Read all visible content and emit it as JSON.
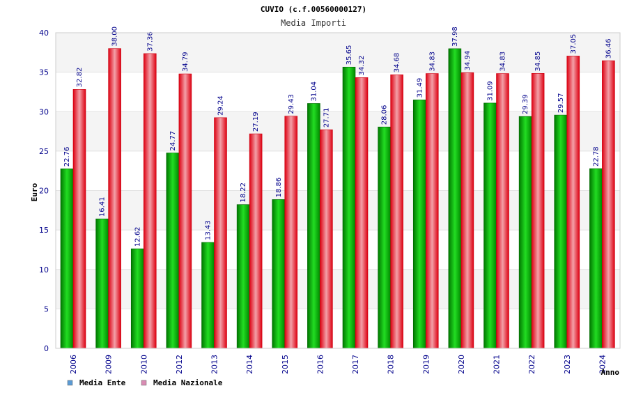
{
  "chart_data": {
    "type": "bar",
    "title": "CUVIO (c.f.00560000127)",
    "subtitle": "Media Importi",
    "xlabel": "Anno",
    "ylabel": "Euro",
    "ylim": [
      0,
      40
    ],
    "yticks": [
      0,
      5,
      10,
      15,
      20,
      25,
      30,
      35,
      40
    ],
    "grid": true,
    "legend_position": "bottom-left",
    "categories": [
      "2006",
      "2009",
      "2010",
      "2012",
      "2013",
      "2014",
      "2015",
      "2016",
      "2017",
      "2018",
      "2019",
      "2020",
      "2021",
      "2022",
      "2023",
      "2024"
    ],
    "series": [
      {
        "name": "Media Ente",
        "color": "#00aa00",
        "legend_color": "#5b9bd5",
        "values": [
          22.76,
          16.41,
          12.62,
          24.77,
          13.43,
          18.22,
          18.86,
          31.04,
          35.65,
          28.06,
          31.49,
          37.98,
          31.09,
          29.39,
          29.57,
          22.78
        ],
        "labels": [
          "22.76",
          "16.41",
          "12.62",
          "24.77",
          "13.43",
          "18.22",
          "18.86",
          "31.04",
          "35.65",
          "28.06",
          "31.49",
          "37.98",
          "31.09",
          "29.39",
          "29.57",
          "22.78"
        ]
      },
      {
        "name": "Media Nazionale",
        "color": "#ee1122",
        "legend_color": "#d98cb3",
        "values": [
          32.82,
          38.0,
          37.36,
          34.79,
          29.24,
          27.19,
          29.43,
          27.71,
          34.32,
          34.68,
          34.83,
          34.94,
          34.83,
          34.85,
          37.05,
          36.46
        ],
        "labels": [
          "32.82",
          "38.00",
          "37.36",
          "34.79",
          "29.24",
          "27.19",
          "29.43",
          "27.71",
          "34.32",
          "34.68",
          "34.83",
          "34.94",
          "34.83",
          "34.85",
          "37.05",
          "36.46"
        ]
      }
    ]
  }
}
